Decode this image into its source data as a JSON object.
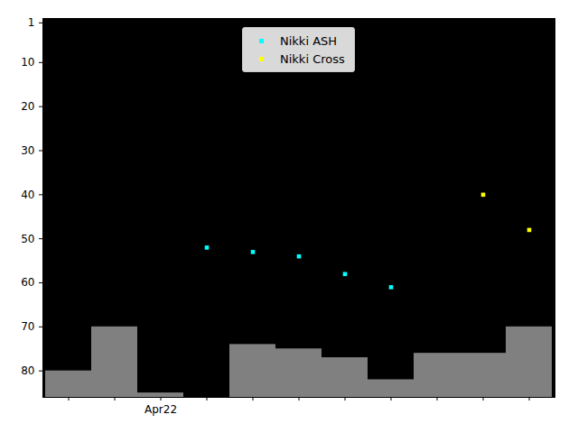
{
  "chart_data": {
    "type": "scatter",
    "categories": [
      null,
      null,
      "Apr22",
      null,
      null,
      null,
      null,
      null,
      null,
      null,
      null
    ],
    "series": [
      {
        "type": "bar",
        "color": "#808080",
        "values": [
          80,
          70,
          85,
          null,
          74,
          75,
          77,
          82,
          76,
          76,
          70
        ]
      },
      {
        "name": "Nikki ASH",
        "color": "#00ffff",
        "marker": "square",
        "values": [
          null,
          null,
          null,
          52,
          53,
          54,
          58,
          61,
          null,
          null,
          null
        ]
      },
      {
        "name": "Nikki Cross",
        "color": "#ffff00",
        "marker": "square",
        "values": [
          null,
          null,
          null,
          null,
          null,
          null,
          null,
          null,
          null,
          40,
          48
        ]
      }
    ],
    "ylim": [
      86,
      0
    ],
    "yticks": [
      1,
      10,
      20,
      30,
      40,
      50,
      60,
      70,
      80
    ],
    "legend": "upper center"
  }
}
